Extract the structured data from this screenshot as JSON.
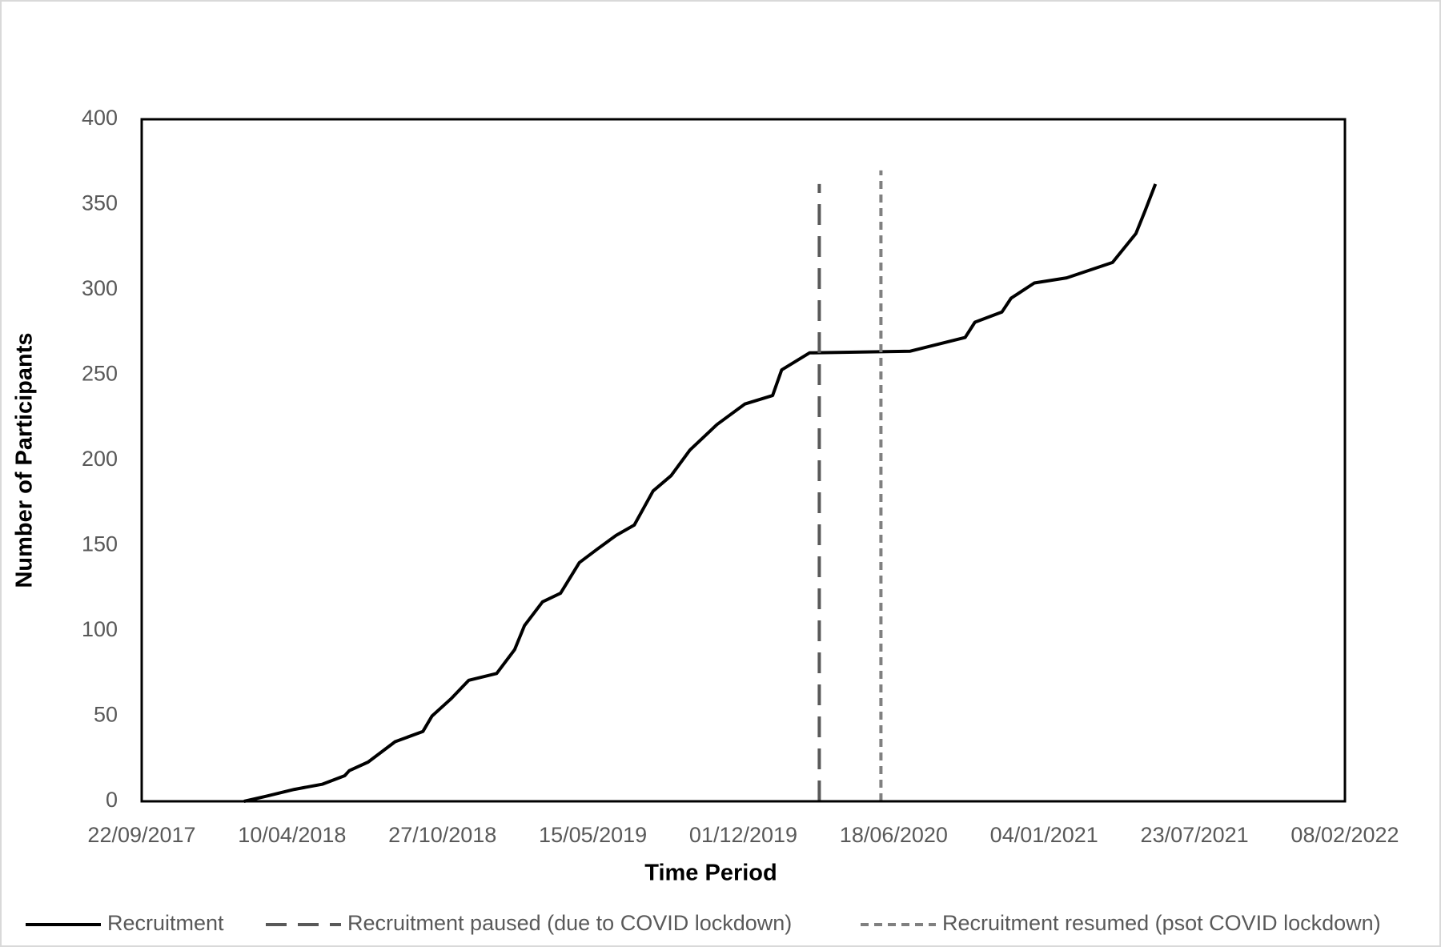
{
  "chart_data": {
    "type": "line",
    "xlabel": "Time Period",
    "ylabel": "Number of Participants",
    "xlim": [
      "2017-09-22",
      "2022-02-08"
    ],
    "xticks": [
      {
        "value": "2017-09-22",
        "label": "22/09/2017"
      },
      {
        "value": "2018-04-10",
        "label": "10/04/2018"
      },
      {
        "value": "2018-10-27",
        "label": "27/10/2018"
      },
      {
        "value": "2019-05-15",
        "label": "15/05/2019"
      },
      {
        "value": "2019-12-01",
        "label": "01/12/2019"
      },
      {
        "value": "2020-06-18",
        "label": "18/06/2020"
      },
      {
        "value": "2021-01-04",
        "label": "04/01/2021"
      },
      {
        "value": "2021-07-23",
        "label": "23/07/2021"
      },
      {
        "value": "2022-02-08",
        "label": "08/02/2022"
      }
    ],
    "ylim": [
      0,
      400
    ],
    "yticks": [
      0,
      50,
      100,
      150,
      200,
      250,
      300,
      350,
      400
    ],
    "grid": false,
    "legend": "bottom",
    "series": [
      {
        "name": "Recruitment",
        "color": "#000000",
        "dash": "solid",
        "x": [
          "2018-02-05",
          "2018-03-07",
          "2018-04-13",
          "2018-05-20",
          "2018-06-19",
          "2018-06-25",
          "2018-07-20",
          "2018-08-25",
          "2018-10-01",
          "2018-10-13",
          "2018-11-07",
          "2018-12-01",
          "2019-01-07",
          "2019-01-31",
          "2019-02-13",
          "2019-03-09",
          "2019-04-02",
          "2019-04-27",
          "2019-05-21",
          "2019-06-15",
          "2019-07-09",
          "2019-08-03",
          "2019-08-27",
          "2019-09-21",
          "2019-10-27",
          "2019-12-03",
          "2020-01-09",
          "2020-01-21",
          "2020-02-27",
          "2020-07-10",
          "2020-09-21",
          "2020-10-04",
          "2020-11-09",
          "2020-11-21",
          "2020-12-22",
          "2021-02-03",
          "2021-04-05",
          "2021-05-06",
          "2021-05-18",
          "2021-06-01"
        ],
        "values": [
          0,
          3,
          7,
          10,
          15,
          18,
          23,
          35,
          41,
          50,
          60,
          71,
          75,
          89,
          103,
          117,
          122,
          140,
          148,
          156,
          162,
          182,
          191,
          206,
          221,
          233,
          238,
          253,
          263,
          264,
          272,
          281,
          287,
          295,
          304,
          307,
          316,
          333,
          346,
          362
        ]
      },
      {
        "name": "Recruitment paused (due to COVID lockdown)",
        "color": "#595959",
        "dash": "long",
        "x": [
          "2020-03-11",
          "2020-03-11"
        ],
        "values": [
          0,
          362
        ]
      },
      {
        "name": "Recruitment resumed (psot COVID lockdown)",
        "color": "#808080",
        "dash": "short",
        "x": [
          "2020-06-01",
          "2020-06-01"
        ],
        "values": [
          0,
          370
        ]
      }
    ]
  }
}
